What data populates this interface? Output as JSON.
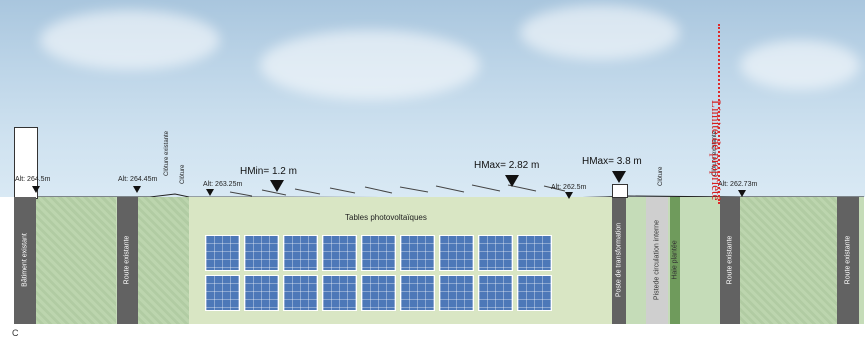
{
  "colors": {
    "sky": "#bdd5e8",
    "ground": "#c5dcb8",
    "plant_area": "#d9e6c4",
    "road": "#626262",
    "panel": "#4d78b8",
    "property_limit": "#d32020"
  },
  "altitudes": {
    "a1": "Alt: 264.5m",
    "a2": "Alt: 264.45m",
    "a3": "Alt: 263.25m",
    "a4": "Alt: 262.5m",
    "a5": "Alt: 262.73m"
  },
  "heights": {
    "hmin": "HMin= 1.2 m",
    "hmax1": "HMax= 2.82 m",
    "hmax2": "HMax= 3.8 m"
  },
  "fences": {
    "c1": "Clôture existante",
    "c2": "Clôture",
    "c3": "Clôture",
    "c4": "Clôture existante"
  },
  "zones": {
    "batiment": "Bâtiment existant",
    "route1": "Route existante",
    "tables": "Tables photovoltaïques",
    "poste": "Poste de transformation",
    "pistede": "Pistede circulation interne",
    "haie": "Haie plantée",
    "route2": "Route existante",
    "route3": "Route existante"
  },
  "limite": "Limite de propriété",
  "corner_letter": "C"
}
